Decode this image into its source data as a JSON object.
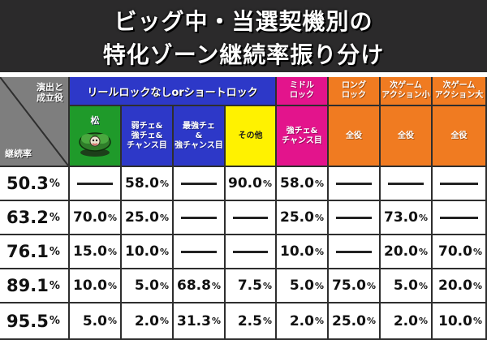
{
  "title": {
    "line1": "ビッグ中・当選契機別の",
    "line2": "特化ゾーン継続率振り分け"
  },
  "corner": {
    "top_label": "演出と\n成立役",
    "bottom_label": "継続率"
  },
  "group_header": "リールロックなしorショートロック",
  "top_headers": [
    {
      "label": "ミドル\nロック",
      "color": "#e3148c"
    },
    {
      "label": "ロング\nロック",
      "color": "#f07b21"
    },
    {
      "label": "次ゲーム\nアクション小",
      "color": "#f07b21"
    },
    {
      "label": "次ゲーム\nアクション大",
      "color": "#f07b21"
    }
  ],
  "sub_headers": [
    {
      "label": "松",
      "color": "#1f9a2a",
      "icon": "plant-icon"
    },
    {
      "label": "弱チェ&\n強チェ&\nチャンス目",
      "color": "#2d38c8"
    },
    {
      "label": "最強チェ\n&\n強チャンス目",
      "color": "#2d38c8"
    },
    {
      "label": "その他",
      "color": "#fff200"
    },
    {
      "label": "強チェ&\nチャンス目",
      "color": "#e3148c"
    },
    {
      "label": "全役",
      "color": "#f07b21"
    },
    {
      "label": "全役",
      "color": "#f07b21"
    },
    {
      "label": "全役",
      "color": "#f07b21"
    }
  ],
  "percent_sign": "%",
  "rows": [
    {
      "rate": "50.3",
      "values": [
        null,
        "58.0",
        null,
        "90.0",
        "58.0",
        null,
        null,
        null
      ]
    },
    {
      "rate": "63.2",
      "values": [
        "70.0",
        "25.0",
        null,
        null,
        "25.0",
        null,
        "73.0",
        null
      ]
    },
    {
      "rate": "76.1",
      "values": [
        "15.0",
        "10.0",
        null,
        null,
        "10.0",
        null,
        "20.0",
        "70.0"
      ]
    },
    {
      "rate": "89.1",
      "values": [
        "10.0",
        "5.0",
        "68.8",
        "7.5",
        "5.0",
        "75.0",
        "5.0",
        "20.0"
      ]
    },
    {
      "rate": "95.5",
      "values": [
        "5.0",
        "2.0",
        "31.3",
        "2.5",
        "2.0",
        "25.0",
        "2.0",
        "10.0"
      ]
    }
  ]
}
